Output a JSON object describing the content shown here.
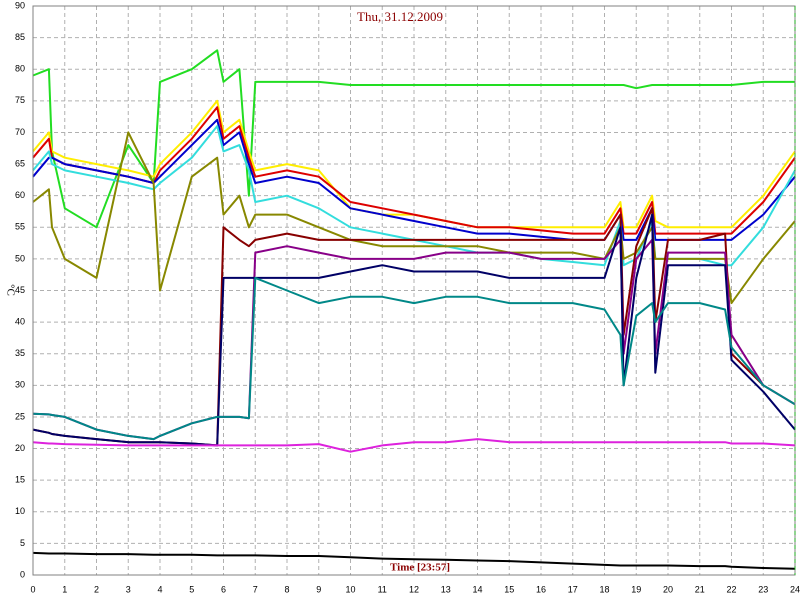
{
  "chart_data": {
    "type": "line",
    "title": "Thu, 31.12.2009",
    "x_label": "Time [23:57]",
    "y_label": "°C",
    "xlim": [
      0,
      24
    ],
    "ylim": [
      0,
      90
    ],
    "xticks": [
      0,
      1,
      2,
      3,
      4,
      5,
      6,
      7,
      8,
      9,
      10,
      11,
      12,
      13,
      14,
      15,
      16,
      17,
      18,
      19,
      20,
      21,
      22,
      23,
      24
    ],
    "yticks": [
      0,
      5,
      10,
      15,
      20,
      25,
      30,
      35,
      40,
      45,
      50,
      55,
      60,
      65,
      70,
      75,
      80,
      85,
      90
    ],
    "grid": true,
    "x": [
      0,
      0.5,
      0.6,
      1,
      2,
      3,
      3.8,
      4,
      5,
      5.8,
      6,
      6.5,
      6.8,
      7,
      8,
      9,
      10,
      11,
      12,
      13,
      14,
      15,
      16,
      17,
      18,
      18.5,
      18.6,
      19,
      19.5,
      19.6,
      20,
      21,
      21.8,
      22,
      23,
      24
    ],
    "series": [
      {
        "color": "#22dd22",
        "values": [
          79,
          80,
          67,
          58,
          55,
          68,
          62,
          78,
          80,
          83,
          78,
          80,
          60,
          78,
          78,
          78,
          77.5,
          77.5,
          77.5,
          77.5,
          77.5,
          77.5,
          77.5,
          77.5,
          77.5,
          77.5,
          77.5,
          77,
          77.5,
          77.5,
          77.5,
          77.5,
          77.5,
          77.5,
          78,
          78
        ]
      },
      {
        "color": "#ffee00",
        "values": [
          67,
          70,
          67,
          66,
          65,
          64,
          63,
          65,
          70,
          75,
          70,
          72,
          67,
          64,
          65,
          64,
          58,
          57,
          57,
          56,
          55,
          55,
          55,
          55,
          55,
          59,
          55,
          55,
          60,
          56,
          55,
          55,
          55,
          55,
          60,
          67
        ]
      },
      {
        "color": "#dd0000",
        "values": [
          66,
          69,
          66,
          65,
          64,
          63,
          62,
          64,
          69,
          74,
          69,
          71,
          66,
          63,
          64,
          63,
          59,
          58,
          57,
          56,
          55,
          55,
          54.5,
          54,
          54,
          58,
          54,
          54,
          59,
          54,
          54,
          54,
          54,
          54,
          59,
          66
        ]
      },
      {
        "color": "#0000cc",
        "values": [
          63,
          66,
          66,
          65,
          64,
          63,
          62,
          63,
          68,
          72,
          68,
          70,
          65,
          62,
          63,
          62,
          58,
          57,
          56,
          55,
          54,
          54,
          53.5,
          53,
          53,
          57,
          53,
          53,
          58,
          53,
          53,
          53,
          53,
          53,
          57,
          63
        ]
      },
      {
        "color": "#33dddd",
        "values": [
          64,
          67,
          65,
          64,
          63,
          62,
          61,
          62,
          66,
          71,
          67,
          68,
          64,
          59,
          60,
          58,
          55,
          54,
          53,
          52,
          51,
          51,
          50,
          49.5,
          49,
          56,
          49,
          50,
          56,
          50,
          50,
          50,
          49,
          49,
          55,
          64
        ]
      },
      {
        "color": "#888800",
        "values": [
          59,
          61,
          55,
          50,
          47,
          70,
          62,
          45,
          63,
          66,
          57,
          60,
          55,
          57,
          57,
          55,
          53,
          52,
          52,
          52,
          52,
          51,
          51,
          51,
          50,
          55,
          50,
          51,
          55,
          50,
          50,
          50,
          50,
          43,
          50,
          56
        ]
      },
      {
        "color": "#880000",
        "values": [
          23,
          22.5,
          22.3,
          22,
          21.5,
          21,
          21,
          21,
          20.8,
          20.5,
          55,
          53,
          52,
          53,
          54,
          53,
          53,
          53,
          53,
          53,
          53,
          53,
          53,
          53,
          53,
          57,
          38,
          52,
          58,
          40,
          53,
          53,
          54,
          35,
          30,
          27
        ]
      },
      {
        "color": "#880088",
        "values": [
          25.5,
          25.4,
          25.3,
          25,
          23,
          22,
          21.5,
          22,
          24,
          25,
          25,
          25,
          24.8,
          51,
          52,
          51,
          50,
          50,
          50,
          51,
          51,
          51,
          50,
          50,
          50,
          53,
          35,
          50,
          53,
          35,
          51,
          51,
          51,
          38,
          30,
          27
        ]
      },
      {
        "color": "#000066",
        "values": [
          23,
          22.5,
          22.3,
          22,
          21.5,
          21,
          21,
          21,
          20.8,
          20.5,
          47,
          47,
          47,
          47,
          47,
          47,
          48,
          49,
          48,
          48,
          48,
          47,
          47,
          47,
          47,
          55,
          30,
          47,
          57,
          32,
          49,
          49,
          49,
          34,
          29,
          23
        ]
      },
      {
        "color": "#008888",
        "values": [
          25.5,
          25.4,
          25.3,
          25,
          23,
          22,
          21.5,
          22,
          24,
          25,
          25,
          25,
          24.8,
          47,
          45,
          43,
          44,
          44,
          43,
          44,
          44,
          43,
          43,
          43,
          42,
          38,
          30,
          41,
          43,
          40,
          43,
          43,
          42,
          36,
          30,
          27
        ]
      },
      {
        "color": "#dd22dd",
        "values": [
          21,
          20.8,
          20.8,
          20.7,
          20.6,
          20.5,
          20.5,
          20.5,
          20.5,
          20.5,
          20.5,
          20.5,
          20.5,
          20.5,
          20.5,
          20.7,
          19.5,
          20.5,
          21,
          21,
          21.5,
          21,
          21,
          21,
          21,
          21,
          21,
          21,
          21,
          21,
          21,
          21,
          21,
          20.8,
          20.8,
          20.5
        ]
      },
      {
        "color": "#000000",
        "values": [
          3.5,
          3.4,
          3.4,
          3.4,
          3.3,
          3.3,
          3.2,
          3.2,
          3.2,
          3.1,
          3.1,
          3.1,
          3.1,
          3.1,
          3,
          3,
          2.8,
          2.6,
          2.5,
          2.4,
          2.3,
          2.2,
          2,
          1.8,
          1.6,
          1.5,
          1.5,
          1.5,
          1.5,
          1.5,
          1.5,
          1.4,
          1.4,
          1.3,
          1.1,
          1
        ]
      }
    ]
  }
}
